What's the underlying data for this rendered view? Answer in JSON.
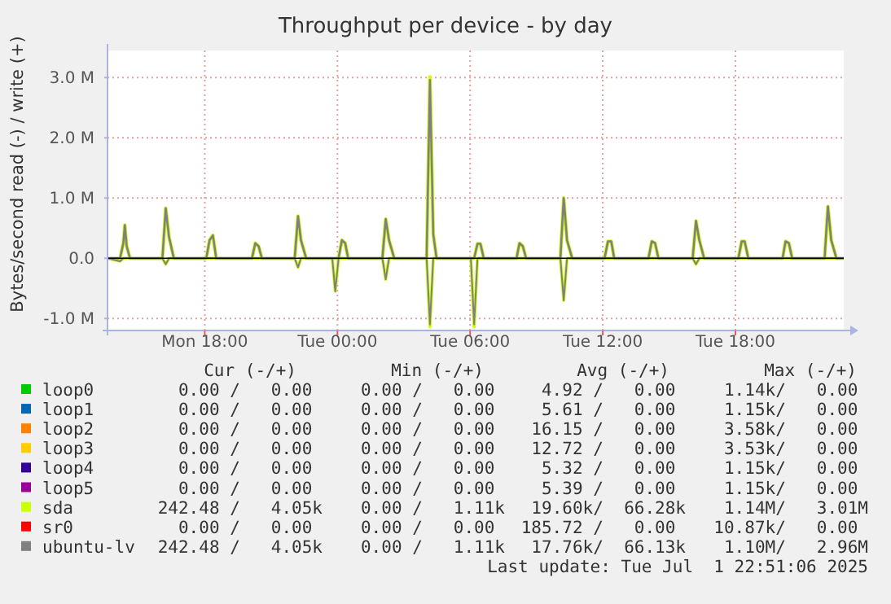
{
  "chart_data": {
    "type": "line",
    "title": "Throughput per device - by day",
    "ylabel": "Bytes/second read (-) / write (+)",
    "xlim": [
      "2025-06-30T13:36",
      "2025-07-01T22:54"
    ],
    "xticks": [
      {
        "value": "2025-06-30T18:00",
        "label": "Mon 18:00"
      },
      {
        "value": "2025-07-01T00:00",
        "label": "Tue 00:00"
      },
      {
        "value": "2025-07-01T06:00",
        "label": "Tue 06:00"
      },
      {
        "value": "2025-07-01T12:00",
        "label": "Tue 12:00"
      },
      {
        "value": "2025-07-01T18:00",
        "label": "Tue 18:00"
      }
    ],
    "ylim": [
      -1200000,
      3450000
    ],
    "yticks": [
      {
        "value": -1000000,
        "label": "-1.0 M"
      },
      {
        "value": 0,
        "label": "0.0"
      },
      {
        "value": 1000000,
        "label": "1.0 M"
      },
      {
        "value": 2000000,
        "label": "2.0 M"
      },
      {
        "value": 3000000,
        "label": "3.0 M"
      }
    ],
    "grid": true,
    "legend": "bottom",
    "line_style": "solid",
    "marker": "none",
    "ref_lines": [
      {
        "axis": "y",
        "value": 0,
        "color": "#000000"
      }
    ],
    "series": [
      {
        "name": "loop0",
        "color": "#00cc00"
      },
      {
        "name": "loop1",
        "color": "#0066b3"
      },
      {
        "name": "loop2",
        "color": "#ff8000"
      },
      {
        "name": "loop3",
        "color": "#ffcc00"
      },
      {
        "name": "loop4",
        "color": "#330099"
      },
      {
        "name": "loop5",
        "color": "#990099"
      },
      {
        "name": "sda",
        "color": "#ccff00",
        "x": [
          "2025-06-30T13:36",
          "2025-06-30T14:10",
          "2025-06-30T14:19",
          "2025-06-30T14:23",
          "2025-06-30T14:28",
          "2025-06-30T14:37",
          "2025-06-30T16:05",
          "2025-06-30T16:14",
          "2025-06-30T16:23",
          "2025-06-30T16:36",
          "2025-06-30T18:04",
          "2025-06-30T18:13",
          "2025-06-30T18:22",
          "2025-06-30T18:31",
          "2025-06-30T20:08",
          "2025-06-30T20:17",
          "2025-06-30T20:26",
          "2025-06-30T20:35",
          "2025-06-30T22:04",
          "2025-06-30T22:13",
          "2025-06-30T22:21",
          "2025-06-30T22:35",
          "2025-07-01T00:03",
          "2025-07-01T00:12",
          "2025-07-01T00:21",
          "2025-07-01T00:29",
          "2025-07-01T02:02",
          "2025-07-01T02:11",
          "2025-07-01T02:20",
          "2025-07-01T02:34",
          "2025-07-01T04:02",
          "2025-07-01T04:11",
          "2025-07-01T04:20",
          "2025-07-01T04:29",
          "2025-07-01T06:11",
          "2025-07-01T06:20",
          "2025-07-01T06:28",
          "2025-07-01T06:37",
          "2025-07-01T08:06",
          "2025-07-01T08:14",
          "2025-07-01T08:23",
          "2025-07-01T08:32",
          "2025-07-01T10:05",
          "2025-07-01T10:14",
          "2025-07-01T10:23",
          "2025-07-01T10:37",
          "2025-07-01T12:05",
          "2025-07-01T12:14",
          "2025-07-01T12:23",
          "2025-07-01T12:31",
          "2025-07-01T14:04",
          "2025-07-01T14:13",
          "2025-07-01T14:22",
          "2025-07-01T14:31",
          "2025-07-01T16:04",
          "2025-07-01T16:13",
          "2025-07-01T16:22",
          "2025-07-01T16:35",
          "2025-07-01T18:08",
          "2025-07-01T18:17",
          "2025-07-01T18:25",
          "2025-07-01T18:35",
          "2025-07-01T20:08",
          "2025-07-01T20:16",
          "2025-07-01T20:25",
          "2025-07-01T20:34",
          "2025-07-01T22:02",
          "2025-07-01T22:11",
          "2025-07-01T22:20",
          "2025-07-01T22:34",
          "2025-07-01T22:54"
        ],
        "values": [
          0,
          0,
          250000,
          550000,
          200000,
          0,
          0,
          830000,
          350000,
          0,
          0,
          300000,
          380000,
          0,
          0,
          250000,
          200000,
          0,
          0,
          700000,
          300000,
          0,
          0,
          300000,
          250000,
          0,
          0,
          650000,
          300000,
          0,
          0,
          3010000,
          400000,
          0,
          0,
          240000,
          240000,
          0,
          0,
          250000,
          200000,
          0,
          0,
          1000000,
          300000,
          0,
          0,
          280000,
          280000,
          0,
          0,
          280000,
          250000,
          0,
          0,
          620000,
          300000,
          0,
          0,
          280000,
          280000,
          0,
          0,
          280000,
          250000,
          0,
          0,
          860000,
          300000,
          0,
          0
        ]
      },
      {
        "color": "#ccff00",
        "x": [
          "2025-06-30T13:36",
          "2025-06-30T14:10",
          "2025-06-30T14:19",
          "2025-06-30T16:05",
          "2025-06-30T16:14",
          "2025-06-30T16:23",
          "2025-06-30T22:04",
          "2025-06-30T22:13",
          "2025-06-30T22:21",
          "2025-06-30T23:46",
          "2025-06-30T23:54",
          "2025-07-01T00:03",
          "2025-07-01T02:02",
          "2025-07-01T02:11",
          "2025-07-01T02:20",
          "2025-07-01T04:02",
          "2025-07-01T04:11",
          "2025-07-01T04:20",
          "2025-07-01T06:02",
          "2025-07-01T06:11",
          "2025-07-01T06:20",
          "2025-07-01T10:05",
          "2025-07-01T10:14",
          "2025-07-01T10:23",
          "2025-07-01T16:04",
          "2025-07-01T16:13",
          "2025-07-01T16:22",
          "2025-07-01T22:54"
        ],
        "values": [
          0,
          -50000,
          0,
          0,
          -100000,
          0,
          0,
          -150000,
          0,
          0,
          -550000,
          0,
          0,
          -350000,
          0,
          0,
          -1140000,
          0,
          0,
          -1140000,
          0,
          0,
          -700000,
          0,
          0,
          -100000,
          0,
          0
        ]
      },
      {
        "name": "sr0",
        "color": "#ff0000"
      },
      {
        "name": "ubuntu-lv",
        "color": "#808080",
        "x": [
          "2025-06-30T13:36",
          "2025-06-30T14:10",
          "2025-06-30T14:19",
          "2025-06-30T14:23",
          "2025-06-30T14:28",
          "2025-06-30T14:37",
          "2025-06-30T16:05",
          "2025-06-30T16:14",
          "2025-06-30T16:23",
          "2025-06-30T16:36",
          "2025-06-30T18:04",
          "2025-06-30T18:13",
          "2025-06-30T18:22",
          "2025-06-30T18:31",
          "2025-06-30T20:08",
          "2025-06-30T20:17",
          "2025-06-30T20:26",
          "2025-06-30T20:35",
          "2025-06-30T22:04",
          "2025-06-30T22:13",
          "2025-06-30T22:21",
          "2025-06-30T22:35",
          "2025-07-01T00:03",
          "2025-07-01T00:12",
          "2025-07-01T00:21",
          "2025-07-01T00:29",
          "2025-07-01T02:02",
          "2025-07-01T02:11",
          "2025-07-01T02:20",
          "2025-07-01T02:34",
          "2025-07-01T04:02",
          "2025-07-01T04:11",
          "2025-07-01T04:20",
          "2025-07-01T04:29",
          "2025-07-01T06:11",
          "2025-07-01T06:20",
          "2025-07-01T06:28",
          "2025-07-01T06:37",
          "2025-07-01T08:06",
          "2025-07-01T08:14",
          "2025-07-01T08:23",
          "2025-07-01T08:32",
          "2025-07-01T10:05",
          "2025-07-01T10:14",
          "2025-07-01T10:23",
          "2025-07-01T10:37",
          "2025-07-01T12:05",
          "2025-07-01T12:14",
          "2025-07-01T12:23",
          "2025-07-01T12:31",
          "2025-07-01T14:04",
          "2025-07-01T14:13",
          "2025-07-01T14:22",
          "2025-07-01T14:31",
          "2025-07-01T16:04",
          "2025-07-01T16:13",
          "2025-07-01T16:22",
          "2025-07-01T16:35",
          "2025-07-01T18:08",
          "2025-07-01T18:17",
          "2025-07-01T18:25",
          "2025-07-01T18:35",
          "2025-07-01T20:08",
          "2025-07-01T20:16",
          "2025-07-01T20:25",
          "2025-07-01T20:34",
          "2025-07-01T22:02",
          "2025-07-01T22:11",
          "2025-07-01T22:20",
          "2025-07-01T22:34",
          "2025-07-01T22:54"
        ],
        "values": [
          0,
          0,
          250000,
          550000,
          200000,
          0,
          0,
          830000,
          350000,
          0,
          0,
          300000,
          380000,
          0,
          0,
          250000,
          200000,
          0,
          0,
          700000,
          300000,
          0,
          0,
          300000,
          250000,
          0,
          0,
          650000,
          300000,
          0,
          0,
          2960000,
          400000,
          0,
          0,
          240000,
          240000,
          0,
          0,
          250000,
          200000,
          0,
          0,
          1000000,
          300000,
          0,
          0,
          280000,
          280000,
          0,
          0,
          280000,
          250000,
          0,
          0,
          620000,
          300000,
          0,
          0,
          280000,
          280000,
          0,
          0,
          280000,
          250000,
          0,
          0,
          860000,
          300000,
          0,
          0
        ]
      },
      {
        "color": "#808080",
        "x": [
          "2025-06-30T13:36",
          "2025-06-30T14:10",
          "2025-06-30T14:19",
          "2025-06-30T16:05",
          "2025-06-30T16:14",
          "2025-06-30T16:23",
          "2025-06-30T22:04",
          "2025-06-30T22:13",
          "2025-06-30T22:21",
          "2025-06-30T23:46",
          "2025-06-30T23:54",
          "2025-07-01T00:03",
          "2025-07-01T02:02",
          "2025-07-01T02:11",
          "2025-07-01T02:20",
          "2025-07-01T04:02",
          "2025-07-01T04:11",
          "2025-07-01T04:20",
          "2025-07-01T06:02",
          "2025-07-01T06:11",
          "2025-07-01T06:20",
          "2025-07-01T10:05",
          "2025-07-01T10:14",
          "2025-07-01T10:23",
          "2025-07-01T16:04",
          "2025-07-01T16:13",
          "2025-07-01T16:22",
          "2025-07-01T22:54"
        ],
        "values": [
          0,
          -50000,
          0,
          0,
          -100000,
          0,
          0,
          -150000,
          0,
          0,
          -550000,
          0,
          0,
          -350000,
          0,
          0,
          -1100000,
          0,
          0,
          -1100000,
          0,
          0,
          -700000,
          0,
          0,
          -100000,
          0,
          0
        ]
      }
    ],
    "annotations": [
      "Cur (-/+)",
      "Min (-/+)",
      "Avg (-/+)",
      "Max (-/+)",
      "0.00 /   0.00",
      "0.00 /   0.00",
      "4.92 /   0.00",
      "1.14k/   0.00",
      "0.00 /   0.00",
      "0.00 /   0.00",
      "5.61 /   0.00",
      "1.15k/   0.00",
      "0.00 /   0.00",
      "0.00 /   0.00",
      "16.15 /   0.00",
      "3.58k/   0.00",
      "0.00 /   0.00",
      "0.00 /   0.00",
      "12.72 /   0.00",
      "3.53k/   0.00",
      "0.00 /   0.00",
      "0.00 /   0.00",
      "5.32 /   0.00",
      "1.15k/   0.00",
      "0.00 /   0.00",
      "0.00 /   0.00",
      "5.39 /   0.00",
      "1.15k/   0.00",
      "242.48 /   4.05k",
      "0.00 /   1.11k",
      "19.60k/  66.28k",
      "1.14M/   3.01M",
      "0.00 /   0.00",
      "0.00 /   0.00",
      "185.72 /   0.00",
      "10.87k/   0.00",
      "242.48 /   4.05k",
      "0.00 /   1.11k",
      "17.76k/  66.13k",
      "1.10M/   2.96M",
      "Last update: Tue Jul  1 22:51:06 2025"
    ]
  }
}
